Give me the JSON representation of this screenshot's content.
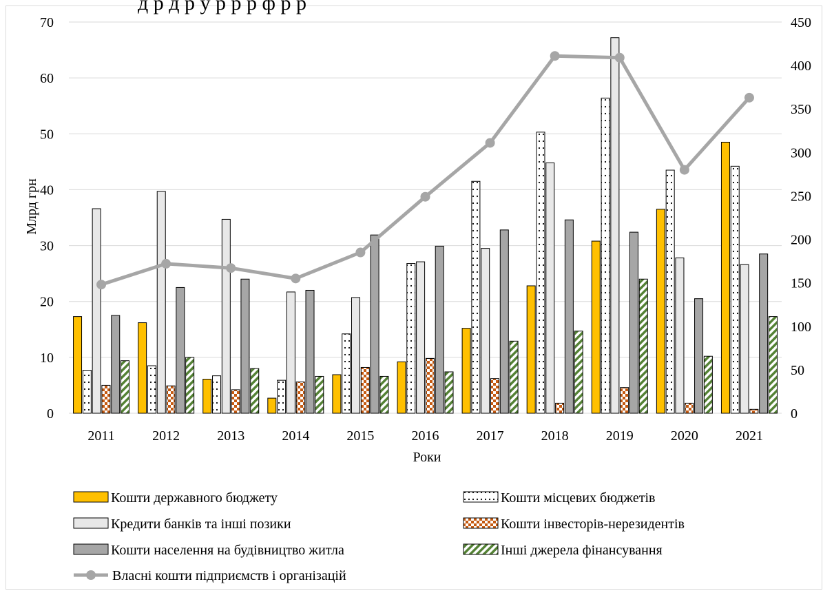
{
  "chart_data": {
    "type": "bar",
    "title_partial": "д р                 д р  у р р   р ф р   р",
    "xlabel": "Роки",
    "ylabel": "Млрд грн",
    "ylim": [
      0,
      70
    ],
    "y_ticks": [
      "0",
      "10",
      "20",
      "30",
      "40",
      "50",
      "60",
      "70"
    ],
    "y2lim": [
      0,
      450
    ],
    "y2_ticks": [
      "0",
      "50",
      "100",
      "150",
      "200",
      "250",
      "300",
      "350",
      "400",
      "450"
    ],
    "categories": [
      "2011",
      "2012",
      "2013",
      "2014",
      "2015",
      "2016",
      "2017",
      "2018",
      "2019",
      "2020",
      "2021"
    ],
    "grid": true,
    "legend_position": "bottom",
    "series": [
      {
        "name": "Кошти державного бюджету",
        "type": "bar",
        "axis": "left",
        "color": "#ffc000",
        "pattern": "solid",
        "values": [
          17.3,
          16.2,
          6.1,
          2.7,
          6.9,
          9.2,
          15.2,
          22.8,
          30.8,
          36.5,
          48.5
        ]
      },
      {
        "name": "Кошти місцевих бюджетів",
        "type": "bar",
        "axis": "left",
        "color": "#ffffff",
        "pattern": "dots",
        "values": [
          7.7,
          8.5,
          6.7,
          5.9,
          14.2,
          26.8,
          41.5,
          50.3,
          56.4,
          43.5,
          44.2
        ]
      },
      {
        "name": "Кредити банків та інші позики",
        "type": "bar",
        "axis": "left",
        "color": "#e8e8e8",
        "pattern": "solid",
        "values": [
          36.6,
          39.7,
          34.7,
          21.7,
          20.7,
          27.1,
          29.5,
          44.8,
          67.2,
          27.8,
          26.6
        ]
      },
      {
        "name": "Кошти інвесторів-нерезидентів",
        "type": "bar",
        "axis": "left",
        "color": "#c55a11",
        "pattern": "checker",
        "values": [
          5.0,
          4.9,
          4.2,
          5.6,
          8.2,
          9.8,
          6.2,
          1.8,
          4.6,
          1.8,
          0.7
        ]
      },
      {
        "name": "Кошти населення на будівництво житла",
        "type": "bar",
        "axis": "left",
        "color": "#a6a6a6",
        "pattern": "solid",
        "values": [
          17.5,
          22.5,
          24.0,
          22.0,
          31.9,
          29.9,
          32.8,
          34.6,
          32.4,
          20.5,
          28.5
        ]
      },
      {
        "name": "Інші джерела фінансування",
        "type": "bar",
        "axis": "left",
        "color": "#548235",
        "pattern": "diagonal",
        "values": [
          9.4,
          10.0,
          8.0,
          6.6,
          6.6,
          7.4,
          12.9,
          14.7,
          24.0,
          10.2,
          17.3
        ]
      },
      {
        "name": "Власні кошти підприємств і організацій",
        "type": "line",
        "axis": "right",
        "color": "#a6a6a6",
        "values": [
          148,
          172,
          167,
          155,
          185,
          249,
          311,
          411,
          409,
          280,
          363
        ]
      }
    ]
  }
}
